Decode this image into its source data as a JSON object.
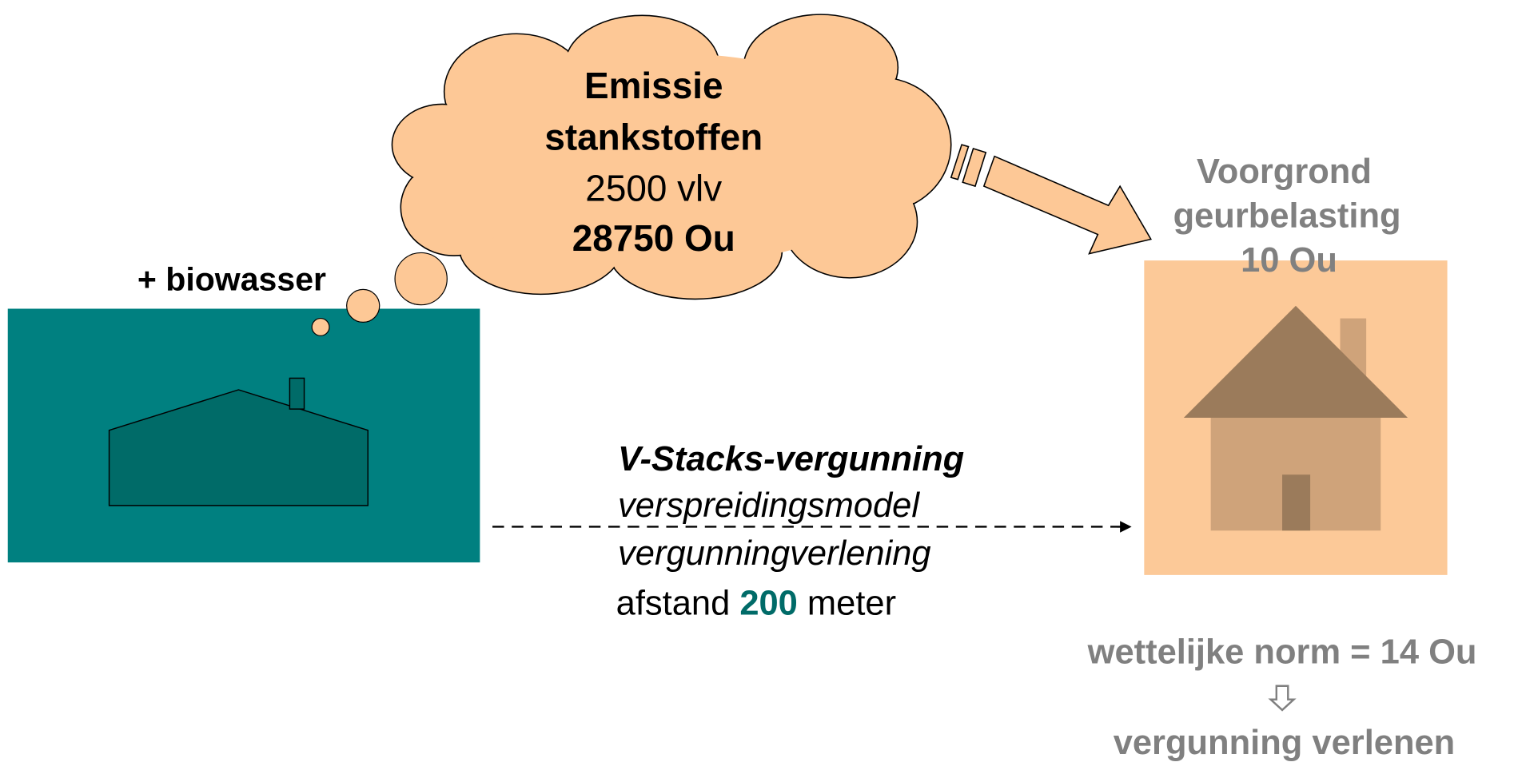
{
  "cloud": {
    "lines": [
      "Emissie",
      "stankstoffen",
      "2500 vlv",
      "28750 Ou"
    ]
  },
  "farm": {
    "label": "+ biowasser"
  },
  "method": {
    "title": "V-Stacks-vergunning",
    "lines": [
      "verspreidingsmodel",
      "vergunningverlening"
    ],
    "distance": {
      "prefix": "afstand",
      "value": 200,
      "suffix": "meter"
    }
  },
  "house": {
    "lines": [
      "Voorgrond",
      "geurbelasting",
      "10 Ou"
    ]
  },
  "conclusion": {
    "norm": "wettelijke norm = 14 Ou",
    "result": "vergunning verlenen"
  }
}
